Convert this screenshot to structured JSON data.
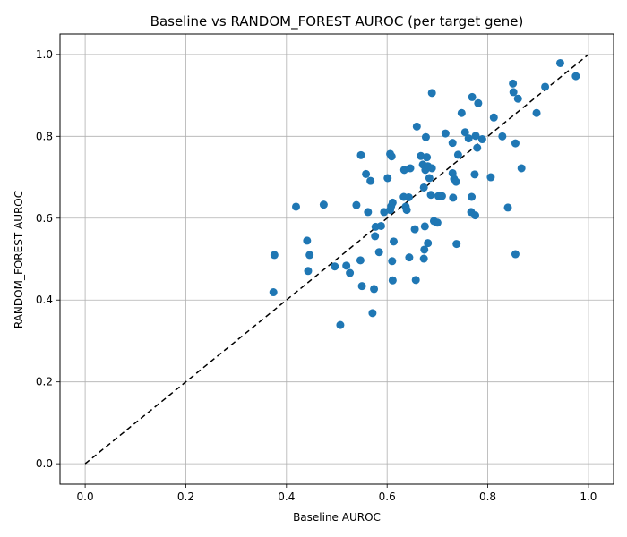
{
  "chart_data": {
    "type": "scatter",
    "title": "Baseline vs RANDOM_FOREST AUROC (per target gene)",
    "xlabel": "Baseline AUROC",
    "ylabel": "RANDOM_FOREST AUROC",
    "xlim": [
      -0.05,
      1.05
    ],
    "ylim": [
      -0.05,
      1.05
    ],
    "xticks": [
      0.0,
      0.2,
      0.4,
      0.6,
      0.8,
      1.0
    ],
    "yticks": [
      0.0,
      0.2,
      0.4,
      0.6,
      0.8,
      1.0
    ],
    "xtick_labels": [
      "0.0",
      "0.2",
      "0.4",
      "0.6",
      "0.8",
      "1.0"
    ],
    "ytick_labels": [
      "0.0",
      "0.2",
      "0.4",
      "0.6",
      "0.8",
      "1.0"
    ],
    "grid": true,
    "point_color": "#1f77b4",
    "reference_line": {
      "from": [
        0,
        0
      ],
      "to": [
        1,
        1
      ],
      "style": "dashed",
      "color": "#000000"
    },
    "points": [
      [
        0.376,
        0.51
      ],
      [
        0.374,
        0.419
      ],
      [
        0.419,
        0.628
      ],
      [
        0.441,
        0.545
      ],
      [
        0.446,
        0.51
      ],
      [
        0.443,
        0.471
      ],
      [
        0.474,
        0.633
      ],
      [
        0.496,
        0.482
      ],
      [
        0.507,
        0.339
      ],
      [
        0.519,
        0.484
      ],
      [
        0.526,
        0.466
      ],
      [
        0.539,
        0.632
      ],
      [
        0.548,
        0.754
      ],
      [
        0.547,
        0.497
      ],
      [
        0.55,
        0.434
      ],
      [
        0.558,
        0.708
      ],
      [
        0.562,
        0.615
      ],
      [
        0.567,
        0.691
      ],
      [
        0.571,
        0.368
      ],
      [
        0.574,
        0.427
      ],
      [
        0.576,
        0.556
      ],
      [
        0.577,
        0.579
      ],
      [
        0.584,
        0.517
      ],
      [
        0.588,
        0.581
      ],
      [
        0.594,
        0.615
      ],
      [
        0.601,
        0.698
      ],
      [
        0.606,
        0.757
      ],
      [
        0.609,
        0.751
      ],
      [
        0.606,
        0.62
      ],
      [
        0.608,
        0.629
      ],
      [
        0.611,
        0.638
      ],
      [
        0.61,
        0.495
      ],
      [
        0.613,
        0.543
      ],
      [
        0.611,
        0.448
      ],
      [
        0.633,
        0.652
      ],
      [
        0.634,
        0.718
      ],
      [
        0.637,
        0.628
      ],
      [
        0.639,
        0.62
      ],
      [
        0.643,
        0.651
      ],
      [
        0.644,
        0.504
      ],
      [
        0.646,
        0.722
      ],
      [
        0.655,
        0.573
      ],
      [
        0.657,
        0.449
      ],
      [
        0.659,
        0.824
      ],
      [
        0.667,
        0.752
      ],
      [
        0.671,
        0.731
      ],
      [
        0.673,
        0.675
      ],
      [
        0.673,
        0.501
      ],
      [
        0.674,
        0.523
      ],
      [
        0.675,
        0.58
      ],
      [
        0.676,
        0.718
      ],
      [
        0.677,
        0.798
      ],
      [
        0.679,
        0.749
      ],
      [
        0.681,
        0.539
      ],
      [
        0.681,
        0.727
      ],
      [
        0.684,
        0.698
      ],
      [
        0.687,
        0.657
      ],
      [
        0.689,
        0.906
      ],
      [
        0.689,
        0.722
      ],
      [
        0.693,
        0.593
      ],
      [
        0.7,
        0.589
      ],
      [
        0.702,
        0.654
      ],
      [
        0.709,
        0.654
      ],
      [
        0.716,
        0.807
      ],
      [
        0.73,
        0.71
      ],
      [
        0.73,
        0.784
      ],
      [
        0.731,
        0.65
      ],
      [
        0.733,
        0.696
      ],
      [
        0.737,
        0.689
      ],
      [
        0.738,
        0.537
      ],
      [
        0.741,
        0.755
      ],
      [
        0.748,
        0.857
      ],
      [
        0.755,
        0.81
      ],
      [
        0.762,
        0.795
      ],
      [
        0.767,
        0.615
      ],
      [
        0.768,
        0.652
      ],
      [
        0.769,
        0.896
      ],
      [
        0.774,
        0.707
      ],
      [
        0.775,
        0.607
      ],
      [
        0.776,
        0.801
      ],
      [
        0.779,
        0.772
      ],
      [
        0.781,
        0.881
      ],
      [
        0.789,
        0.793
      ],
      [
        0.806,
        0.7
      ],
      [
        0.812,
        0.846
      ],
      [
        0.829,
        0.8
      ],
      [
        0.84,
        0.626
      ],
      [
        0.85,
        0.929
      ],
      [
        0.851,
        0.908
      ],
      [
        0.855,
        0.783
      ],
      [
        0.855,
        0.512
      ],
      [
        0.86,
        0.892
      ],
      [
        0.867,
        0.722
      ],
      [
        0.897,
        0.857
      ],
      [
        0.914,
        0.921
      ],
      [
        0.944,
        0.979
      ],
      [
        0.975,
        0.947
      ]
    ]
  }
}
